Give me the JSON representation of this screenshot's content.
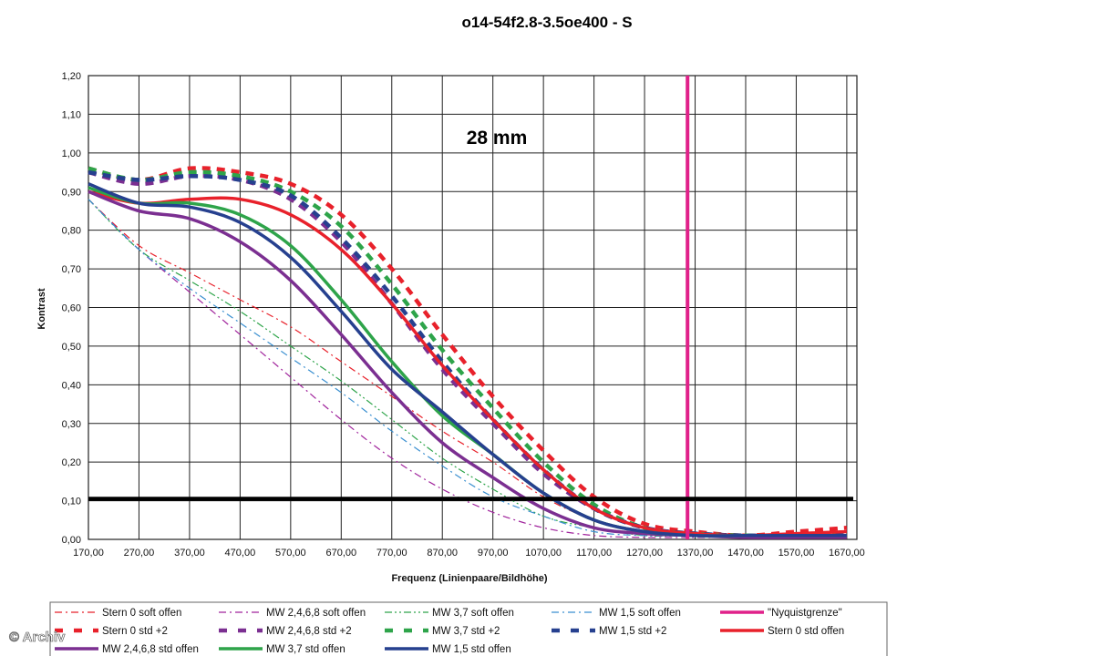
{
  "chart_data": {
    "type": "line",
    "title": "o14-54f2.8-3.5oe400 - S",
    "annotation": "28 mm",
    "xlabel": "Frequenz (Linienpaare/Bildhöhe)",
    "ylabel": "Kontrast",
    "xlim": [
      170,
      1690
    ],
    "ylim": [
      0,
      1.2
    ],
    "x_ticks": [
      "170,00",
      "270,00",
      "370,00",
      "470,00",
      "570,00",
      "670,00",
      "770,00",
      "870,00",
      "970,00",
      "1070,00",
      "1170,00",
      "1270,00",
      "1370,00",
      "1470,00",
      "1570,00",
      "1670,00"
    ],
    "y_ticks": [
      "0,00",
      "0,10",
      "0,20",
      "0,30",
      "0,40",
      "0,50",
      "0,60",
      "0,70",
      "0,80",
      "0,90",
      "1,00",
      "1,10",
      "1,20"
    ],
    "grid": true,
    "reference_lines": [
      {
        "name": "\"Nyquistgrenze\"",
        "orientation": "vertical",
        "x": 1355,
        "color": "#e0218a"
      },
      {
        "name": "",
        "orientation": "horizontal",
        "y": 0.105,
        "color": "#000000"
      }
    ],
    "x": [
      170,
      270,
      370,
      470,
      570,
      670,
      770,
      870,
      970,
      1070,
      1170,
      1270,
      1370,
      1470,
      1570,
      1670
    ],
    "series": [
      {
        "name": "Stern 0 soft offen",
        "color": "#e8212b",
        "style": "dashdot",
        "width": 1.2,
        "values": [
          0.88,
          0.76,
          0.69,
          0.62,
          0.55,
          0.46,
          0.37,
          0.28,
          0.2,
          0.11,
          0.05,
          0.02,
          0.01,
          0.01,
          0.01,
          0.01
        ]
      },
      {
        "name": "MW 2,4,6,8 soft offen",
        "color": "#a0239c",
        "style": "dashdot",
        "width": 1.2,
        "values": [
          0.88,
          0.75,
          0.64,
          0.53,
          0.42,
          0.31,
          0.21,
          0.13,
          0.07,
          0.03,
          0.01,
          0.005,
          0.005,
          0.005,
          0.005,
          0.005
        ]
      },
      {
        "name": "MW 3,7 soft offen",
        "color": "#2ea44a",
        "style": "dashdotdot",
        "width": 1.2,
        "values": [
          0.88,
          0.75,
          0.67,
          0.59,
          0.5,
          0.41,
          0.31,
          0.21,
          0.13,
          0.06,
          0.03,
          0.01,
          0.01,
          0.01,
          0.01,
          0.01
        ]
      },
      {
        "name": "MW 1,5 soft offen",
        "color": "#3a8fd0",
        "style": "dashdot",
        "width": 1.2,
        "values": [
          0.88,
          0.75,
          0.65,
          0.56,
          0.47,
          0.38,
          0.28,
          0.19,
          0.11,
          0.06,
          0.02,
          0.01,
          0.01,
          0.01,
          0.01,
          0.01
        ]
      },
      {
        "name": "Stern 0 std +2",
        "color": "#e8212b",
        "style": "dash",
        "width": 4.5,
        "values": [
          0.96,
          0.93,
          0.96,
          0.95,
          0.92,
          0.84,
          0.7,
          0.53,
          0.37,
          0.23,
          0.11,
          0.04,
          0.02,
          0.01,
          0.02,
          0.03
        ]
      },
      {
        "name": "MW 2,4,6,8 std +2",
        "color": "#7b2f91",
        "style": "dash",
        "width": 4.5,
        "values": [
          0.95,
          0.92,
          0.94,
          0.93,
          0.88,
          0.77,
          0.61,
          0.44,
          0.3,
          0.17,
          0.08,
          0.03,
          0.015,
          0.01,
          0.01,
          0.01
        ]
      },
      {
        "name": "MW 3,7 std +2",
        "color": "#2ea44a",
        "style": "dash",
        "width": 4.5,
        "values": [
          0.96,
          0.93,
          0.95,
          0.94,
          0.9,
          0.81,
          0.66,
          0.49,
          0.34,
          0.2,
          0.09,
          0.03,
          0.015,
          0.01,
          0.01,
          0.01
        ]
      },
      {
        "name": "MW 1,5 std +2",
        "color": "#26408f",
        "style": "dash",
        "width": 4.5,
        "values": [
          0.95,
          0.93,
          0.94,
          0.93,
          0.89,
          0.78,
          0.63,
          0.46,
          0.31,
          0.18,
          0.08,
          0.03,
          0.015,
          0.01,
          0.01,
          0.01
        ]
      },
      {
        "name": "Stern 0 std offen",
        "color": "#e8212b",
        "style": "solid",
        "width": 3.5,
        "values": [
          0.9,
          0.87,
          0.88,
          0.88,
          0.84,
          0.75,
          0.61,
          0.45,
          0.31,
          0.18,
          0.08,
          0.03,
          0.015,
          0.01,
          0.015,
          0.02
        ]
      },
      {
        "name": "MW 2,4,6,8 std offen",
        "color": "#7b2f91",
        "style": "solid",
        "width": 3.5,
        "values": [
          0.9,
          0.85,
          0.83,
          0.77,
          0.67,
          0.53,
          0.38,
          0.25,
          0.16,
          0.08,
          0.03,
          0.015,
          0.01,
          0.005,
          0.005,
          0.005
        ]
      },
      {
        "name": "MW 3,7 std offen",
        "color": "#2ea44a",
        "style": "solid",
        "width": 3.5,
        "values": [
          0.91,
          0.87,
          0.87,
          0.84,
          0.76,
          0.62,
          0.46,
          0.32,
          0.22,
          0.12,
          0.05,
          0.02,
          0.01,
          0.01,
          0.01,
          0.01
        ]
      },
      {
        "name": "MW 1,5 std offen",
        "color": "#26408f",
        "style": "solid",
        "width": 3.5,
        "values": [
          0.92,
          0.87,
          0.86,
          0.82,
          0.73,
          0.59,
          0.44,
          0.33,
          0.22,
          0.12,
          0.05,
          0.02,
          0.01,
          0.01,
          0.01,
          0.01
        ]
      }
    ],
    "legend": [
      {
        "label": "Stern 0 soft offen",
        "color": "#e8212b",
        "style": "dashdot",
        "width": 1.2
      },
      {
        "label": "MW 2,4,6,8 soft offen",
        "color": "#a0239c",
        "style": "dashdot",
        "width": 1.2
      },
      {
        "label": "MW 3,7 soft offen",
        "color": "#2ea44a",
        "style": "dashdotdot",
        "width": 1.2
      },
      {
        "label": "MW 1,5 soft offen",
        "color": "#3a8fd0",
        "style": "dashdot",
        "width": 1.2
      },
      {
        "label": "\"Nyquistgrenze\"",
        "color": "#e0218a",
        "style": "solid",
        "width": 3.5
      },
      {
        "label": "Stern 0 std +2",
        "color": "#e8212b",
        "style": "dash",
        "width": 4.5
      },
      {
        "label": "MW 2,4,6,8 std +2",
        "color": "#7b2f91",
        "style": "dash",
        "width": 4.5
      },
      {
        "label": "MW 3,7 std +2",
        "color": "#2ea44a",
        "style": "dash",
        "width": 4.5
      },
      {
        "label": "MW 1,5 std +2",
        "color": "#26408f",
        "style": "dash",
        "width": 4.5
      },
      {
        "label": "Stern 0 std offen",
        "color": "#e8212b",
        "style": "solid",
        "width": 3.5
      },
      {
        "label": "MW 2,4,6,8 std offen",
        "color": "#7b2f91",
        "style": "solid",
        "width": 3.5
      },
      {
        "label": "MW 3,7 std offen",
        "color": "#2ea44a",
        "style": "solid",
        "width": 3.5
      },
      {
        "label": "MW 1,5 std offen",
        "color": "#26408f",
        "style": "solid",
        "width": 3.5
      }
    ],
    "legend_placement": "bottom"
  },
  "watermark": "© Archiv"
}
